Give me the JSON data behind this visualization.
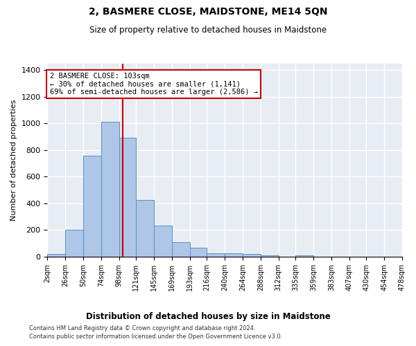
{
  "title": "2, BASMERE CLOSE, MAIDSTONE, ME14 5QN",
  "subtitle": "Size of property relative to detached houses in Maidstone",
  "xlabel": "Distribution of detached houses by size in Maidstone",
  "ylabel": "Number of detached properties",
  "footer_line1": "Contains HM Land Registry data © Crown copyright and database right 2024.",
  "footer_line2": "Contains public sector information licensed under the Open Government Licence v3.0.",
  "bar_color": "#aec6e8",
  "bar_edge_color": "#5a8fc2",
  "background_color": "#e8edf4",
  "grid_color": "#ffffff",
  "vline_color": "#cc0000",
  "vline_x": 103,
  "annotation_text": "2 BASMERE CLOSE: 103sqm\n← 30% of detached houses are smaller (1,141)\n69% of semi-detached houses are larger (2,586) →",
  "annotation_box_color": "#cc0000",
  "bin_edges": [
    2,
    26,
    50,
    74,
    98,
    121,
    145,
    169,
    193,
    216,
    240,
    264,
    288,
    312,
    335,
    359,
    383,
    407,
    430,
    454,
    478
  ],
  "bar_heights": [
    20,
    200,
    760,
    1010,
    890,
    425,
    235,
    110,
    70,
    25,
    25,
    20,
    10,
    0,
    10,
    0,
    0,
    0,
    0,
    0
  ],
  "ylim": [
    0,
    1450
  ],
  "yticks": [
    0,
    200,
    400,
    600,
    800,
    1000,
    1200,
    1400
  ]
}
